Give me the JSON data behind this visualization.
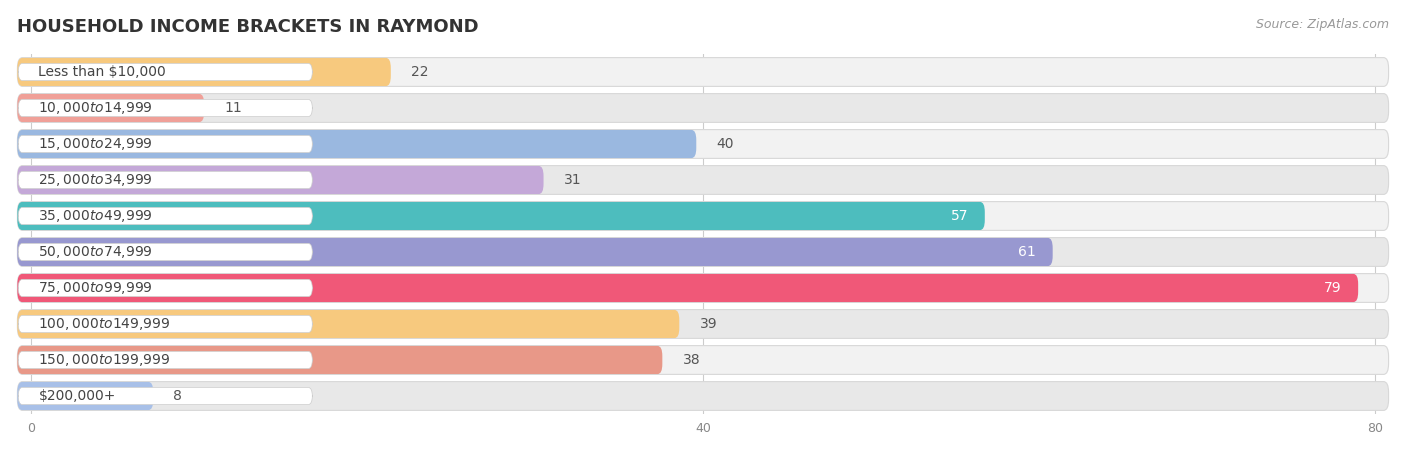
{
  "title": "HOUSEHOLD INCOME BRACKETS IN RAYMOND",
  "source": "Source: ZipAtlas.com",
  "categories": [
    "Less than $10,000",
    "$10,000 to $14,999",
    "$15,000 to $24,999",
    "$25,000 to $34,999",
    "$35,000 to $49,999",
    "$50,000 to $74,999",
    "$75,000 to $99,999",
    "$100,000 to $149,999",
    "$150,000 to $199,999",
    "$200,000+"
  ],
  "values": [
    22,
    11,
    40,
    31,
    57,
    61,
    79,
    39,
    38,
    8
  ],
  "bar_colors": [
    "#f7c97e",
    "#f0a098",
    "#9ab8e0",
    "#c4a8d8",
    "#4dbdbe",
    "#9898d0",
    "#f05878",
    "#f7c97e",
    "#e89888",
    "#a8c0e8"
  ],
  "xlim_max": 80,
  "xticks": [
    0,
    40,
    80
  ],
  "bg_color": "#ffffff",
  "row_bg_even": "#f2f2f2",
  "row_bg_odd": "#e8e8e8",
  "row_border_color": "#d8d8d8",
  "value_white_bars": [
    4,
    5,
    6
  ],
  "title_fontsize": 13,
  "source_fontsize": 9,
  "label_fontsize": 10,
  "value_fontsize": 10
}
